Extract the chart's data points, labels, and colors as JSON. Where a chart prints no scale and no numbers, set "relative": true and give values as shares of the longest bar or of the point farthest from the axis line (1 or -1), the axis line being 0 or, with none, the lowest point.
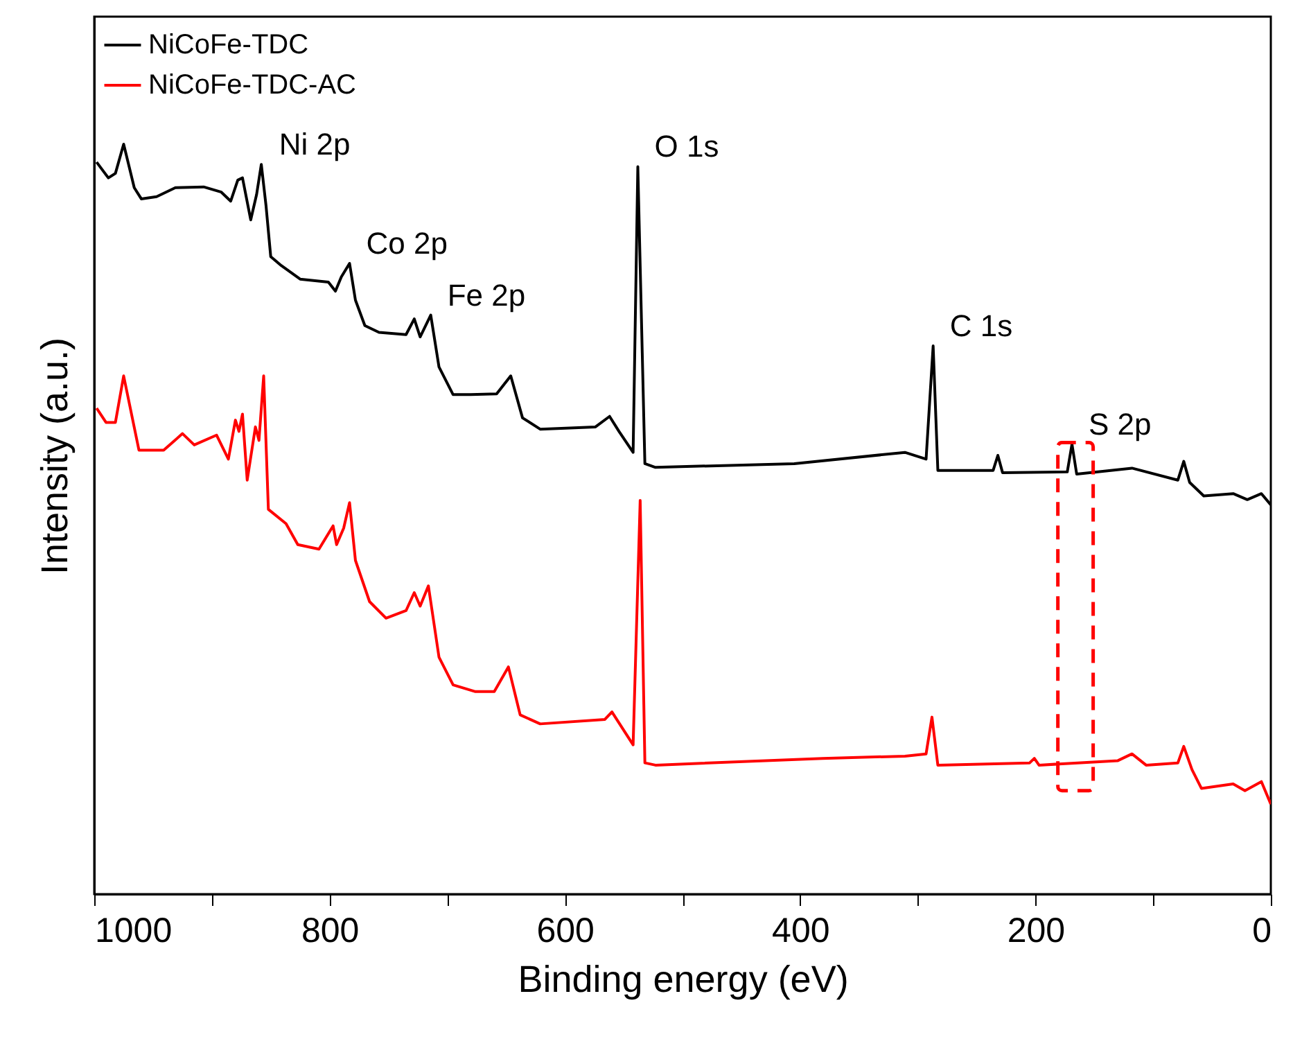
{
  "chart_data": {
    "type": "line",
    "xlabel": "Binding energy (eV)",
    "ylabel": "Intensity (a.u.)",
    "relative": true,
    "xlim": [
      1000,
      0
    ],
    "xticks": [
      1000,
      {
        "value": 900,
        "label": null
      },
      800,
      {
        "value": 700,
        "label": null
      },
      600,
      {
        "value": 500,
        "label": null
      },
      400,
      {
        "value": 300,
        "label": null
      },
      200,
      {
        "value": 100,
        "label": null
      },
      0
    ],
    "legend": "top left",
    "line_style": "solid",
    "annotations": [
      {
        "text": "Ni 2p",
        "x": 857,
        "y": 0.973
      },
      {
        "text": "Co 2p",
        "x": 783,
        "y": 0.841
      },
      {
        "text": "Fe 2p",
        "x": 714,
        "y": 0.772
      },
      {
        "text": "O 1s",
        "x": 538,
        "y": 0.97
      },
      {
        "text": "C 1s",
        "x": 287,
        "y": 0.731
      },
      {
        "text": "S 2p",
        "x": 169,
        "y": 0.6
      }
    ],
    "series": [
      {
        "name": "NiCoFe-TDC",
        "color": "#000000",
        "x": [
          998,
          988,
          982,
          975,
          966,
          960,
          947,
          931,
          907,
          892,
          884,
          878,
          874,
          867,
          862,
          858,
          854,
          850,
          841,
          825,
          801,
          795,
          790,
          783,
          778,
          770,
          758,
          735,
          728,
          723,
          714,
          707,
          695,
          680,
          658,
          646,
          636,
          621,
          574,
          562,
          554,
          542,
          538,
          532,
          523,
          405,
          311,
          293,
          287,
          283,
          236,
          232,
          228,
          173,
          169,
          165,
          118,
          79,
          74,
          69,
          57,
          32,
          20,
          8,
          0
        ],
        "values": [
          0.976,
          0.955,
          0.961,
          1,
          0.942,
          0.927,
          0.93,
          0.942,
          0.943,
          0.936,
          0.924,
          0.952,
          0.955,
          0.899,
          0.933,
          0.973,
          0.918,
          0.85,
          0.838,
          0.82,
          0.816,
          0.804,
          0.823,
          0.841,
          0.792,
          0.758,
          0.749,
          0.746,
          0.767,
          0.743,
          0.772,
          0.703,
          0.666,
          0.666,
          0.667,
          0.691,
          0.635,
          0.62,
          0.623,
          0.637,
          0.617,
          0.589,
          0.97,
          0.574,
          0.569,
          0.574,
          0.589,
          0.58,
          0.731,
          0.565,
          0.565,
          0.585,
          0.562,
          0.563,
          0.6,
          0.56,
          0.568,
          0.552,
          0.577,
          0.549,
          0.531,
          0.534,
          0.526,
          0.534,
          0.519
        ]
      },
      {
        "name": "NiCoFe-TDC-AC",
        "color": "#ff0000",
        "x": [
          998,
          990,
          982,
          975,
          962,
          941,
          925,
          915,
          896,
          886,
          880,
          877,
          874,
          870,
          863,
          860,
          856,
          852,
          837,
          827,
          809,
          797,
          794,
          788,
          783,
          778,
          766,
          752,
          735,
          728,
          723,
          716,
          707,
          695,
          676,
          660,
          648,
          638,
          621,
          566,
          560,
          542,
          536,
          532,
          523,
          381,
          311,
          293,
          288,
          283,
          205,
          201,
          197,
          130,
          118,
          106,
          79,
          74,
          67,
          59,
          32,
          22,
          8,
          0
        ],
        "values": [
          0.648,
          0.629,
          0.629,
          0.691,
          0.592,
          0.592,
          0.614,
          0.599,
          0.612,
          0.58,
          0.632,
          0.617,
          0.64,
          0.552,
          0.623,
          0.605,
          0.691,
          0.513,
          0.494,
          0.466,
          0.46,
          0.491,
          0.466,
          0.488,
          0.522,
          0.445,
          0.39,
          0.368,
          0.378,
          0.402,
          0.384,
          0.411,
          0.316,
          0.279,
          0.27,
          0.27,
          0.303,
          0.239,
          0.227,
          0.233,
          0.243,
          0.199,
          0.525,
          0.175,
          0.172,
          0.181,
          0.184,
          0.187,
          0.236,
          0.172,
          0.175,
          0.181,
          0.172,
          0.178,
          0.187,
          0.172,
          0.175,
          0.197,
          0.166,
          0.141,
          0.147,
          0.138,
          0.15,
          0.12
        ]
      }
    ]
  }
}
